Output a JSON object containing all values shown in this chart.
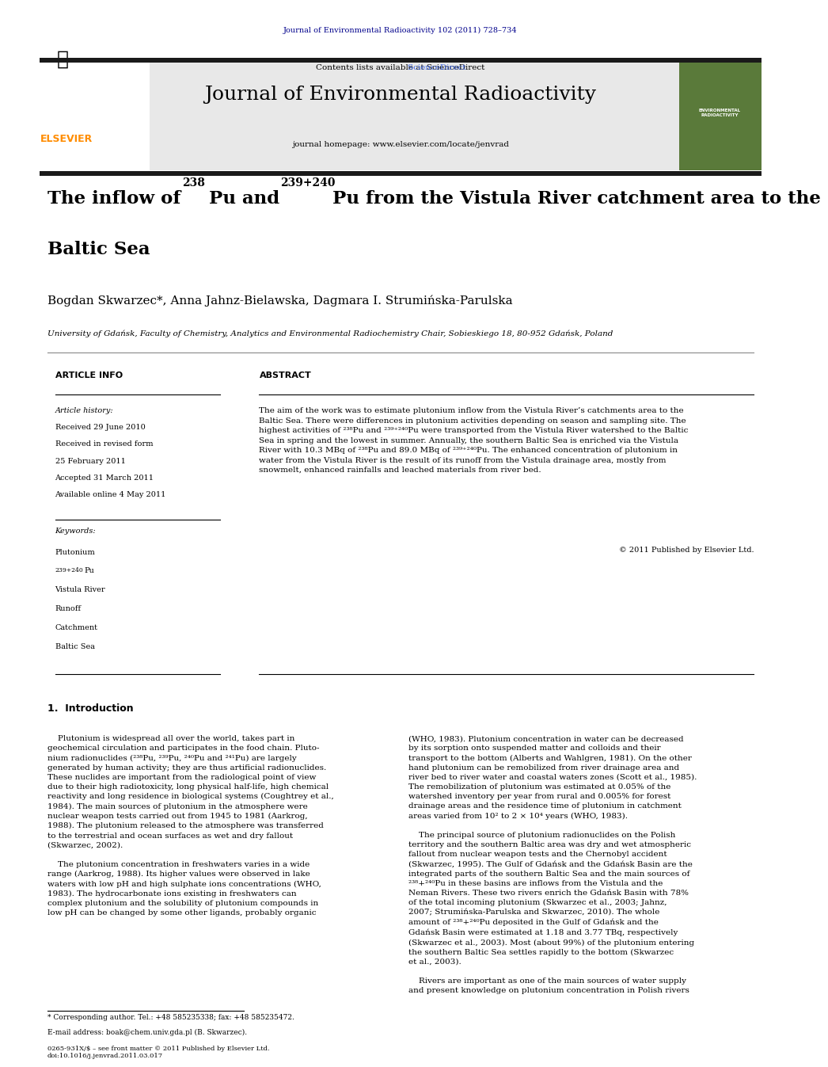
{
  "page_width": 9.92,
  "page_height": 13.23,
  "background_color": "#ffffff",
  "journal_ref_text": "Journal of Environmental Radioactivity 102 (2011) 728–734",
  "journal_ref_color": "#00008B",
  "contents_text": "Contents lists available at ",
  "sciencedirect_text": "ScienceDirect",
  "sciencedirect_color": "#4169E1",
  "journal_name": "Journal of Environmental Radioactivity",
  "journal_homepage_text": "journal homepage: www.elsevier.com/locate/jenvrad",
  "header_bg_color": "#E8E8E8",
  "elsevier_color": "#FF8C00",
  "thick_bar_color": "#1a1a1a",
  "article_title_line1": "The inflow of ",
  "article_title_sup1": "238",
  "article_title_mid1": "Pu and ",
  "article_title_sup2": "239+240",
  "article_title_mid2": "Pu from the Vistula River catchment area to the",
  "article_title_line2": "Baltic Sea",
  "authors": "Bogdan Skwarzec*, Anna Jahnz-Bielawska, Dagmara I. Strumińska-Parulska",
  "affiliation": "University of Gdańsk, Faculty of Chemistry, Analytics and Environmental Radiochemistry Chair, Sobieskiego 18, 80-952 Gdańsk, Poland",
  "section_article_info": "ARTICLE INFO",
  "section_abstract": "ABSTRACT",
  "article_history_label": "Article history:",
  "received1": "Received 29 June 2010",
  "received2": "Received in revised form",
  "received2b": "25 February 2011",
  "accepted": "Accepted 31 March 2011",
  "available": "Available online 4 May 2011",
  "keywords_label": "Keywords:",
  "keywords": [
    "Plutonium",
    "239+240Pu",
    "Vistula River",
    "Runoff",
    "Catchment",
    "Baltic Sea"
  ],
  "abstract_text": "The aim of the work was to estimate plutonium inflow from the Vistula River’s catchments area to the Baltic Sea. There were differences in plutonium activities depending on season and sampling site. The highest activities of ²³⁸Pu and ²³⁹⁺²⁴⁰Pu were transported from the Vistula River watershed to the Baltic Sea in spring and the lowest in summer. Annually, the southern Baltic Sea is enriched via the Vistula River with 10.3 MBq of ²³⁸Pu and 89.0 MBq of ²³⁹⁺²⁴⁰Pu. The enhanced concentration of plutonium in water from the Vistula River is the result of its runoff from the Vistula drainage area, mostly from snowmelt, enhanced rainfalls and leached materials from river bed.",
  "copyright_text": "© 2011 Published by Elsevier Ltd.",
  "intro_heading": "1.  Introduction",
  "intro_col1": "Plutonium is widespread all over the world, takes part in geochemical circulation and participates in the food chain. Pluto-nium radionuclides (²³⁸Pu, ²³⁹Pu, ²⁴⁰Pu and ²⁴¹Pu) are largely generated by human activity; they are thus artificial radionuclides. These nuclides are important from the radiological point of view due to their high radiotoxicity, long physical half-life, high chemical reactivity and long residence in biological systems (Coughtrey et al., 1984). The main sources of plutonium in the atmosphere were nuclear weapon tests carried out from 1945 to 1981 (Aarkrog, 1988). The plutonium released to the atmosphere was transferred to the terrestrial and ocean surfaces as wet and dry fallout (Skwarzec, 2002).\n\n    The plutonium concentration in freshwaters varies in a wide range (Aarkrog, 1988). Its higher values were observed in lake waters with low pH and high sulphate ions concentrations (WHO, 1983). The hydrocarbonate ions existing in freshwaters can complex plutonium and the solubility of plutonium compounds in low pH can be changed by some other ligands, probably organic",
  "intro_col2": "(WHO, 1983). Plutonium concentration in water can be decreased by its sorption onto suspended matter and colloids and their transport to the bottom (Alberts and Wahlgren, 1981). On the other hand plutonium can be remobilized from river drainage area and river bed to river water and coastal waters zones (Scott et al., 1985). The remobilization of plutonium was estimated at 0.05% of the watershed inventory per year from rural and 0.005% for forest drainage areas and the residence time of plutonium in catchment areas varied from 10² to 2 × 10⁴ years (WHO, 1983).\n\n    The principal source of plutonium radionuclides on the Polish territory and the southern Baltic area was dry and wet atmospheric fallout from nuclear weapon tests and the Chernobyl accident (Skwarzec, 1995). The Gulf of Gdańsk and the Gdańsk Basin are the integrated parts of the southern Baltic Sea and the main sources of ²³⁸+²⁴⁰Pu in these basins are inflows from the Vistula and the Neman Rivers. These two rivers enrich the Gdańsk Basin with 78% of the total incoming plutonium (Skwarzec et al., 2003; Jahnz, 2007; Strumińska-Parulska and Skwarzec, 2010). The whole amount of ²³⁸+²⁴⁰Pu deposited in the Gulf of Gdańsk and the Gdańsk Basin were estimated at 1.18 and 3.77 TBq, respectively (Skwarzec et al., 2003). Most (about 99%) of the plutonium entering the southern Baltic Sea settles rapidly to the bottom (Skwarzec et al., 2003).\n\n    Rivers are important as one of the main sources of water supply and present knowledge on plutonium concentration in Polish rivers",
  "footnote_text": "* Corresponding author. Tel.: +48 585235338; fax: +48 585235472.",
  "footnote_email": "E-mail address: boak@chem.univ.gda.pl (B. Skwarzec).",
  "footer_text": "0265-931X/$ – see front matter © 2011 Published by Elsevier Ltd.",
  "footer_doi": "doi:10.1016/j.jenvrad.2011.03.017",
  "link_color": "#4169E1"
}
